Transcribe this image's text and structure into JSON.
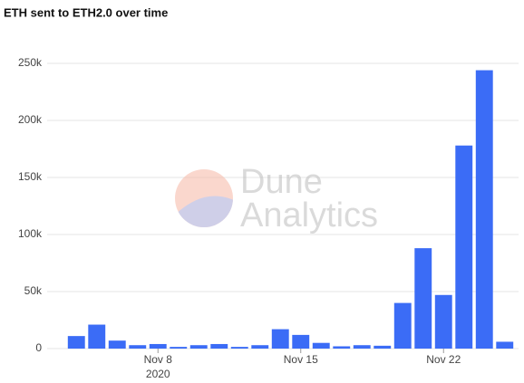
{
  "chart_data": {
    "type": "bar",
    "title": "ETH sent to ETH2.0 over time",
    "watermark": [
      "Dune",
      "Analytics"
    ],
    "x": [
      "2020-11-04",
      "2020-11-05",
      "2020-11-06",
      "2020-11-07",
      "2020-11-08",
      "2020-11-09",
      "2020-11-10",
      "2020-11-11",
      "2020-11-12",
      "2020-11-13",
      "2020-11-14",
      "2020-11-15",
      "2020-11-16",
      "2020-11-17",
      "2020-11-18",
      "2020-11-19",
      "2020-11-20",
      "2020-11-21",
      "2020-11-22",
      "2020-11-23",
      "2020-11-24",
      "2020-11-25"
    ],
    "values": [
      11000,
      21000,
      7000,
      3000,
      4000,
      1500,
      3000,
      4000,
      1500,
      3000,
      17000,
      12000,
      5000,
      2000,
      3000,
      2500,
      40000,
      88000,
      47000,
      178000,
      244000,
      6000
    ],
    "color": "#3b6cf6",
    "ylim": [
      0,
      250000
    ],
    "yticks": [
      {
        "value": 0,
        "label": "0"
      },
      {
        "value": 50000,
        "label": "50k"
      },
      {
        "value": 100000,
        "label": "100k"
      },
      {
        "value": 150000,
        "label": "150k"
      },
      {
        "value": 200000,
        "label": "200k"
      },
      {
        "value": 250000,
        "label": "250k"
      }
    ],
    "xticks": [
      {
        "value": "2020-11-08",
        "label": "Nov 8",
        "sublabel": "2020"
      },
      {
        "value": "2020-11-15",
        "label": "Nov 15"
      },
      {
        "value": "2020-11-22",
        "label": "Nov 22"
      }
    ],
    "grid": true
  }
}
